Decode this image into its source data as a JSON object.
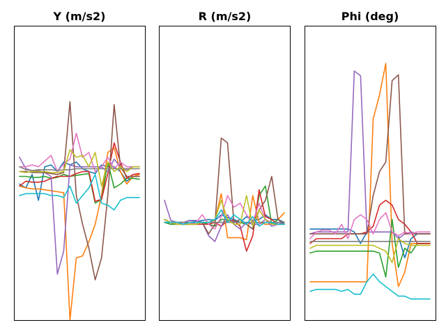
{
  "chart_data": [
    {
      "type": "line",
      "title": "Y (m/s2)",
      "ylim": [
        -1.6,
        1.4
      ],
      "x": [
        0,
        1,
        2,
        3,
        4,
        5,
        6,
        7,
        8,
        9,
        10,
        11,
        12,
        13,
        14,
        15,
        16,
        17,
        18,
        19
      ],
      "series": [
        {
          "color": "#1f77b4",
          "values": [
            -0.18,
            -0.22,
            -0.08,
            -0.35,
            0.0,
            0.02,
            -0.05,
            0.05,
            0.02,
            0.05,
            -0.02,
            -0.05,
            -0.07,
            0.02,
            0.0,
            0.0,
            -0.05,
            -0.15,
            -0.1,
            -0.1
          ]
        },
        {
          "color": "#ff7f0e",
          "values": [
            -0.2,
            -0.22,
            -0.23,
            -0.23,
            -0.24,
            -0.25,
            -0.26,
            -0.27,
            -1.6,
            -0.95,
            -0.93,
            -0.78,
            -0.6,
            -0.3,
            0.15,
            0.2,
            -0.05,
            -0.18,
            -0.1,
            -0.08
          ]
        },
        {
          "color": "#2ca02c",
          "values": [
            -0.1,
            -0.1,
            -0.11,
            -0.11,
            -0.1,
            -0.12,
            -0.11,
            -0.08,
            -0.1,
            -0.09,
            -0.08,
            -0.07,
            -0.38,
            -0.34,
            0.05,
            -0.22,
            -0.18,
            -0.12,
            -0.12,
            -0.13
          ]
        },
        {
          "color": "#d62728",
          "values": [
            -0.2,
            -0.15,
            -0.16,
            -0.16,
            -0.15,
            -0.12,
            -0.1,
            -0.1,
            -0.1,
            -0.07,
            -0.05,
            -0.05,
            -0.36,
            -0.34,
            -0.07,
            0.25,
            0.05,
            -0.12,
            -0.08,
            -0.07
          ]
        },
        {
          "color": "#9467bd",
          "values": [
            0.1,
            -0.02,
            -0.04,
            -0.04,
            -0.06,
            -0.1,
            -1.12,
            -0.88,
            0.02,
            0.0,
            0.0,
            0.0,
            0.0,
            0.0,
            -0.05,
            0.08,
            0.0,
            -0.03,
            0.0,
            0.0
          ]
        },
        {
          "color": "#8c564b",
          "values": [
            -0.05,
            -0.05,
            -0.06,
            -0.06,
            -0.06,
            -0.07,
            -0.08,
            -0.06,
            0.68,
            -0.3,
            -0.6,
            -0.85,
            -1.18,
            -0.95,
            -0.3,
            0.65,
            0.0,
            -0.1,
            -0.1,
            -0.1
          ]
        },
        {
          "color": "#e377c2",
          "values": [
            0.0,
            0.0,
            0.02,
            0.0,
            0.06,
            0.12,
            -0.05,
            0.03,
            0.08,
            0.35,
            0.1,
            0.15,
            -0.05,
            0.0,
            0.1,
            -0.02,
            0.05,
            0.0,
            0.0,
            0.0
          ]
        },
        {
          "color": "#7f7f7f",
          "values": [
            0.0,
            -0.03,
            -0.04,
            -0.03,
            -0.03,
            -0.03,
            -0.04,
            -0.03,
            -0.03,
            -0.02,
            -0.02,
            -0.02,
            -0.02,
            -0.02,
            -0.02,
            -0.02,
            -0.02,
            -0.02,
            -0.02,
            -0.02
          ]
        },
        {
          "color": "#bcbd22",
          "values": [
            -0.05,
            -0.06,
            -0.05,
            -0.05,
            -0.05,
            -0.06,
            -0.06,
            -0.05,
            0.18,
            0.1,
            0.12,
            0.0,
            0.15,
            -0.2,
            0.05,
            -0.05,
            0.0,
            -0.05,
            0.0,
            0.0
          ]
        },
        {
          "color": "#17becf",
          "values": [
            -0.3,
            -0.28,
            -0.28,
            -0.28,
            -0.28,
            -0.3,
            -0.3,
            -0.32,
            -0.2,
            -0.38,
            -0.3,
            -0.22,
            -0.08,
            -0.38,
            -0.4,
            -0.45,
            -0.35,
            -0.32,
            -0.32,
            -0.32
          ]
        }
      ]
    },
    {
      "type": "line",
      "title": "R (m/s2)",
      "ylim": [
        -1.6,
        1.4
      ],
      "x": [
        0,
        1,
        2,
        3,
        4,
        5,
        6,
        7,
        8,
        9,
        10,
        11,
        12,
        13,
        14,
        15,
        16,
        17,
        18,
        19
      ],
      "series": [
        {
          "color": "#1f77b4",
          "values": [
            -0.55,
            -0.58,
            -0.58,
            -0.58,
            -0.56,
            -0.57,
            -0.56,
            -0.55,
            -0.56,
            -0.5,
            -0.53,
            -0.55,
            -0.58,
            -0.52,
            -0.56,
            -0.55,
            -0.5,
            -0.55,
            -0.55,
            -0.58
          ]
        },
        {
          "color": "#ff7f0e",
          "values": [
            -0.58,
            -0.6,
            -0.58,
            -0.6,
            -0.6,
            -0.58,
            -0.58,
            -0.58,
            -0.56,
            -0.28,
            -0.74,
            -0.74,
            -0.74,
            -0.76,
            -0.3,
            -0.58,
            -0.6,
            -0.6,
            -0.55,
            -0.48
          ]
        },
        {
          "color": "#2ca02c",
          "values": [
            -0.58,
            -0.6,
            -0.6,
            -0.6,
            -0.6,
            -0.6,
            -0.58,
            -0.6,
            -0.62,
            -0.55,
            -0.55,
            -0.58,
            -0.58,
            -0.6,
            -0.65,
            -0.3,
            -0.2,
            -0.6,
            -0.55,
            -0.6
          ]
        },
        {
          "color": "#d62728",
          "values": [
            -0.58,
            -0.58,
            -0.6,
            -0.6,
            -0.6,
            -0.6,
            -0.6,
            -0.6,
            -0.58,
            -0.62,
            -0.56,
            -0.56,
            -0.62,
            -0.88,
            -0.72,
            -0.24,
            -0.52,
            -0.55,
            -0.6,
            -0.6
          ]
        },
        {
          "color": "#9467bd",
          "values": [
            -0.35,
            -0.56,
            -0.58,
            -0.58,
            -0.56,
            -0.56,
            -0.58,
            -0.72,
            -0.78,
            -0.62,
            -0.5,
            -0.6,
            -0.65,
            -0.58,
            -0.6,
            -0.6,
            -0.55,
            -0.62,
            -0.6,
            -0.58
          ]
        },
        {
          "color": "#8c564b",
          "values": [
            -0.55,
            -0.58,
            -0.58,
            -0.6,
            -0.58,
            -0.6,
            -0.58,
            -0.7,
            -0.6,
            0.3,
            0.25,
            -0.58,
            -0.55,
            -0.6,
            -0.65,
            -0.45,
            -0.35,
            -0.1,
            -0.55,
            -0.6
          ]
        },
        {
          "color": "#e377c2",
          "values": [
            -0.58,
            -0.58,
            -0.6,
            -0.58,
            -0.6,
            -0.58,
            -0.5,
            -0.6,
            -0.65,
            -0.52,
            -0.3,
            -0.42,
            -0.38,
            -0.5,
            -0.58,
            -0.38,
            -0.55,
            -0.58,
            -0.6,
            -0.6
          ]
        },
        {
          "color": "#7f7f7f",
          "values": [
            -0.58,
            -0.58,
            -0.58,
            -0.58,
            -0.58,
            -0.58,
            -0.58,
            -0.58,
            -0.58,
            -0.58,
            -0.58,
            -0.58,
            -0.58,
            -0.58,
            -0.58,
            -0.58,
            -0.58,
            -0.58,
            -0.58,
            -0.58
          ]
        },
        {
          "color": "#bcbd22",
          "values": [
            -0.55,
            -0.58,
            -0.6,
            -0.6,
            -0.6,
            -0.6,
            -0.58,
            -0.58,
            -0.55,
            -0.35,
            -0.55,
            -0.6,
            -0.6,
            -0.3,
            -0.62,
            -0.45,
            -0.55,
            -0.6,
            -0.6,
            -0.6
          ]
        },
        {
          "color": "#17becf",
          "values": [
            -0.58,
            -0.58,
            -0.58,
            -0.6,
            -0.58,
            -0.58,
            -0.58,
            -0.58,
            -0.55,
            -0.45,
            -0.58,
            -0.5,
            -0.55,
            -0.6,
            -0.52,
            -0.62,
            -0.58,
            -0.58,
            -0.6,
            -0.6
          ]
        }
      ]
    },
    {
      "type": "line",
      "title": "Phi (deg)",
      "ylim": [
        -1.6,
        1.4
      ],
      "x": [
        0,
        1,
        2,
        3,
        4,
        5,
        6,
        7,
        8,
        9,
        10,
        11,
        12,
        13,
        14,
        15,
        16,
        17,
        18,
        19
      ],
      "series": [
        {
          "color": "#1f77b4",
          "values": [
            -0.65,
            -0.65,
            -0.65,
            -0.65,
            -0.65,
            -0.65,
            -0.65,
            -0.68,
            -0.8,
            -0.68,
            -0.68,
            -0.68,
            -0.68,
            -0.68,
            -0.72,
            -0.95,
            -0.75,
            -0.7,
            -0.7,
            -0.7
          ]
        },
        {
          "color": "#ff7f0e",
          "values": [
            -1.2,
            -1.2,
            -1.2,
            -1.2,
            -1.2,
            -1.2,
            -1.2,
            -1.2,
            -1.2,
            -1.2,
            0.5,
            0.75,
            1.08,
            -0.8,
            -1.25,
            -1.1,
            -0.8,
            -0.8,
            -0.8,
            -0.8
          ]
        },
        {
          "color": "#2ca02c",
          "values": [
            -0.9,
            -0.88,
            -0.88,
            -0.88,
            -0.88,
            -0.88,
            -0.88,
            -0.88,
            -0.88,
            -0.88,
            -0.88,
            -0.9,
            -1.15,
            -0.55,
            -1.05,
            -0.85,
            -0.9,
            -0.8,
            -0.8,
            -0.8
          ]
        },
        {
          "color": "#d62728",
          "values": [
            -0.8,
            -0.75,
            -0.75,
            -0.75,
            -0.75,
            -0.75,
            -0.7,
            -0.7,
            -0.7,
            -0.68,
            -0.62,
            -0.4,
            -0.35,
            -0.4,
            -0.55,
            -0.6,
            -0.68,
            -0.8,
            -0.8,
            -0.8
          ]
        },
        {
          "color": "#9467bd",
          "values": [
            -0.7,
            -0.68,
            -0.68,
            -0.68,
            -0.68,
            -0.68,
            -0.68,
            1.0,
            0.95,
            -0.68,
            -0.68,
            -0.68,
            -0.68,
            -0.68,
            -0.75,
            -0.7,
            -0.68,
            -0.7,
            -0.7,
            -0.7
          ]
        },
        {
          "color": "#8c564b",
          "values": [
            -0.7,
            -0.7,
            -0.7,
            -0.7,
            -0.7,
            -0.7,
            -0.7,
            -0.7,
            -0.7,
            -0.7,
            -0.3,
            -0.05,
            0.05,
            0.9,
            0.96,
            -0.7,
            -0.7,
            -0.7,
            -0.7,
            -0.7
          ]
        },
        {
          "color": "#e377c2",
          "values": [
            -0.75,
            -0.68,
            -0.66,
            -0.66,
            -0.7,
            -0.6,
            -0.75,
            -0.55,
            -0.5,
            -0.55,
            -0.7,
            -0.55,
            -0.48,
            -0.68,
            -0.72,
            -0.68,
            -0.7,
            -0.68,
            -0.68,
            -0.68
          ]
        },
        {
          "color": "#7f7f7f",
          "values": [
            -0.78,
            -0.78,
            -0.78,
            -0.78,
            -0.78,
            -0.78,
            -0.78,
            -0.78,
            -0.78,
            -0.78,
            -0.78,
            -0.78,
            -0.78,
            -0.78,
            -0.78,
            -0.78,
            -0.78,
            -0.78,
            -0.78,
            -0.78
          ]
        },
        {
          "color": "#bcbd22",
          "values": [
            -0.85,
            -0.82,
            -0.82,
            -0.82,
            -0.82,
            -0.82,
            -0.82,
            -0.82,
            -0.82,
            -0.82,
            -0.82,
            -0.85,
            -0.88,
            -1.0,
            -0.75,
            -0.8,
            -0.82,
            -0.82,
            -0.82,
            -0.82
          ]
        },
        {
          "color": "#17becf",
          "values": [
            -1.3,
            -1.28,
            -1.28,
            -1.28,
            -1.28,
            -1.3,
            -1.28,
            -1.33,
            -1.33,
            -1.2,
            -1.12,
            -1.2,
            -1.25,
            -1.3,
            -1.35,
            -1.35,
            -1.38,
            -1.38,
            -1.38,
            -1.38
          ]
        }
      ]
    }
  ]
}
